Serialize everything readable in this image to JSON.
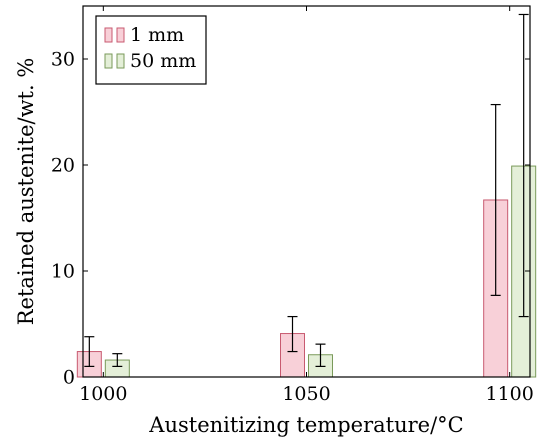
{
  "chart_data": {
    "type": "bar",
    "xlabel": "Austenitizing temperature/°C",
    "ylabel": "Retained austenite/wt. %",
    "categories": [
      "1000",
      "1050",
      "1100"
    ],
    "x": [
      1000,
      1050,
      1100
    ],
    "xlim": [
      995,
      1105
    ],
    "ylim": [
      0,
      35
    ],
    "yticks": [
      0,
      10,
      20,
      30
    ],
    "grid": false,
    "legend_position": "top-left",
    "series": [
      {
        "name": "1 mm",
        "color": "#f8d0d8",
        "edge_color": "#c85a70",
        "values": [
          2.4,
          4.1,
          16.7
        ],
        "error_low": [
          1.0,
          2.4,
          7.7
        ],
        "error_high": [
          3.8,
          5.7,
          25.7
        ]
      },
      {
        "name": "50 mm",
        "color": "#e4efd8",
        "edge_color": "#7a9a5a",
        "values": [
          1.6,
          2.1,
          19.9
        ],
        "error_low": [
          1.0,
          1.0,
          5.7
        ],
        "error_high": [
          2.2,
          3.1,
          34.2
        ]
      }
    ]
  }
}
